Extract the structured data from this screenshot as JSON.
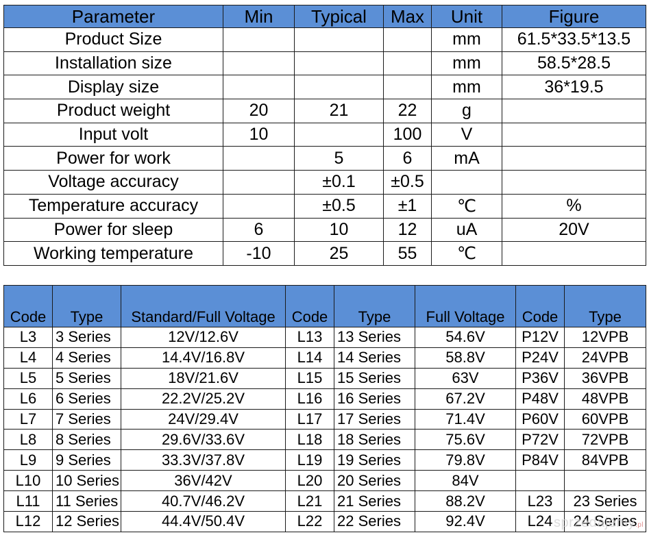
{
  "spec_table": {
    "headers": [
      "Parameter",
      "Min",
      "Typical",
      "Max",
      "Unit",
      "Figure"
    ],
    "rows": [
      [
        "Product Size",
        "",
        "",
        "",
        "mm",
        "61.5*33.5*13.5"
      ],
      [
        "Installation size",
        "",
        "",
        "",
        "mm",
        "58.5*28.5"
      ],
      [
        "Display size",
        "",
        "",
        "",
        "mm",
        "36*19.5"
      ],
      [
        "Product weight",
        "20",
        "21",
        "22",
        "g",
        ""
      ],
      [
        "Input volt",
        "10",
        "",
        "100",
        "V",
        ""
      ],
      [
        "Power for work",
        "",
        "5",
        "6",
        "mA",
        ""
      ],
      [
        "Voltage accuracy",
        "",
        "±0.1",
        "±0.5",
        "",
        ""
      ],
      [
        "Temperature accuracy",
        "",
        "±0.5",
        "±1",
        "℃",
        "%"
      ],
      [
        "Power for sleep",
        "6",
        "10",
        "12",
        "uA",
        "20V"
      ],
      [
        "Working temperature",
        "-10",
        "25",
        "55",
        "℃",
        ""
      ]
    ]
  },
  "code_table": {
    "headers": [
      "Code",
      "Type",
      "Standard/Full Voltage",
      "Code",
      "Type",
      "Full Voltage",
      "Code",
      "Type"
    ],
    "rows": [
      [
        "L3",
        "3 Series",
        "12V/12.6V",
        "L13",
        "13 Series",
        "54.6V",
        "P12V",
        "12VPB"
      ],
      [
        "L4",
        "4 Series",
        "14.4V/16.8V",
        "L14",
        "14 Series",
        "58.8V",
        "P24V",
        "24VPB"
      ],
      [
        "L5",
        "5 Series",
        "18V/21.6V",
        "L15",
        "15 Series",
        "63V",
        "P36V",
        "36VPB"
      ],
      [
        "L6",
        "6 Series",
        "22.2V/25.2V",
        "L16",
        "16 Series",
        "67.2V",
        "P48V",
        "48VPB"
      ],
      [
        "L7",
        "7 Series",
        "24V/29.4V",
        "L17",
        "17 Series",
        "71.4V",
        "P60V",
        "60VPB"
      ],
      [
        "L8",
        "8 Series",
        "29.6V/33.6V",
        "L18",
        "18 Series",
        "75.6V",
        "P72V",
        "72VPB"
      ],
      [
        "L9",
        "9 Series",
        "33.3V/37.8V",
        "L19",
        "19 Series",
        "79.8V",
        "P84V",
        "84VPB"
      ],
      [
        "L10",
        "10 Series",
        "36V/42V",
        "L20",
        "20 Series",
        "84V",
        "",
        ""
      ],
      [
        "L11",
        "11 Series",
        "40.7V/46.2V",
        "L21",
        "21 Series",
        "88.2V",
        "L23",
        "23 Series"
      ],
      [
        "L12",
        "12 Series",
        "44.4V/50.4V",
        "L22",
        "22 Series",
        "92.4V",
        "L24",
        "24 Series"
      ]
    ]
  },
  "watermark": {
    "text": "sprzedajemy",
    "suffix": ".pl"
  },
  "colors": {
    "header_bg": "#5b8fd6",
    "border": "#1a1a1a"
  }
}
